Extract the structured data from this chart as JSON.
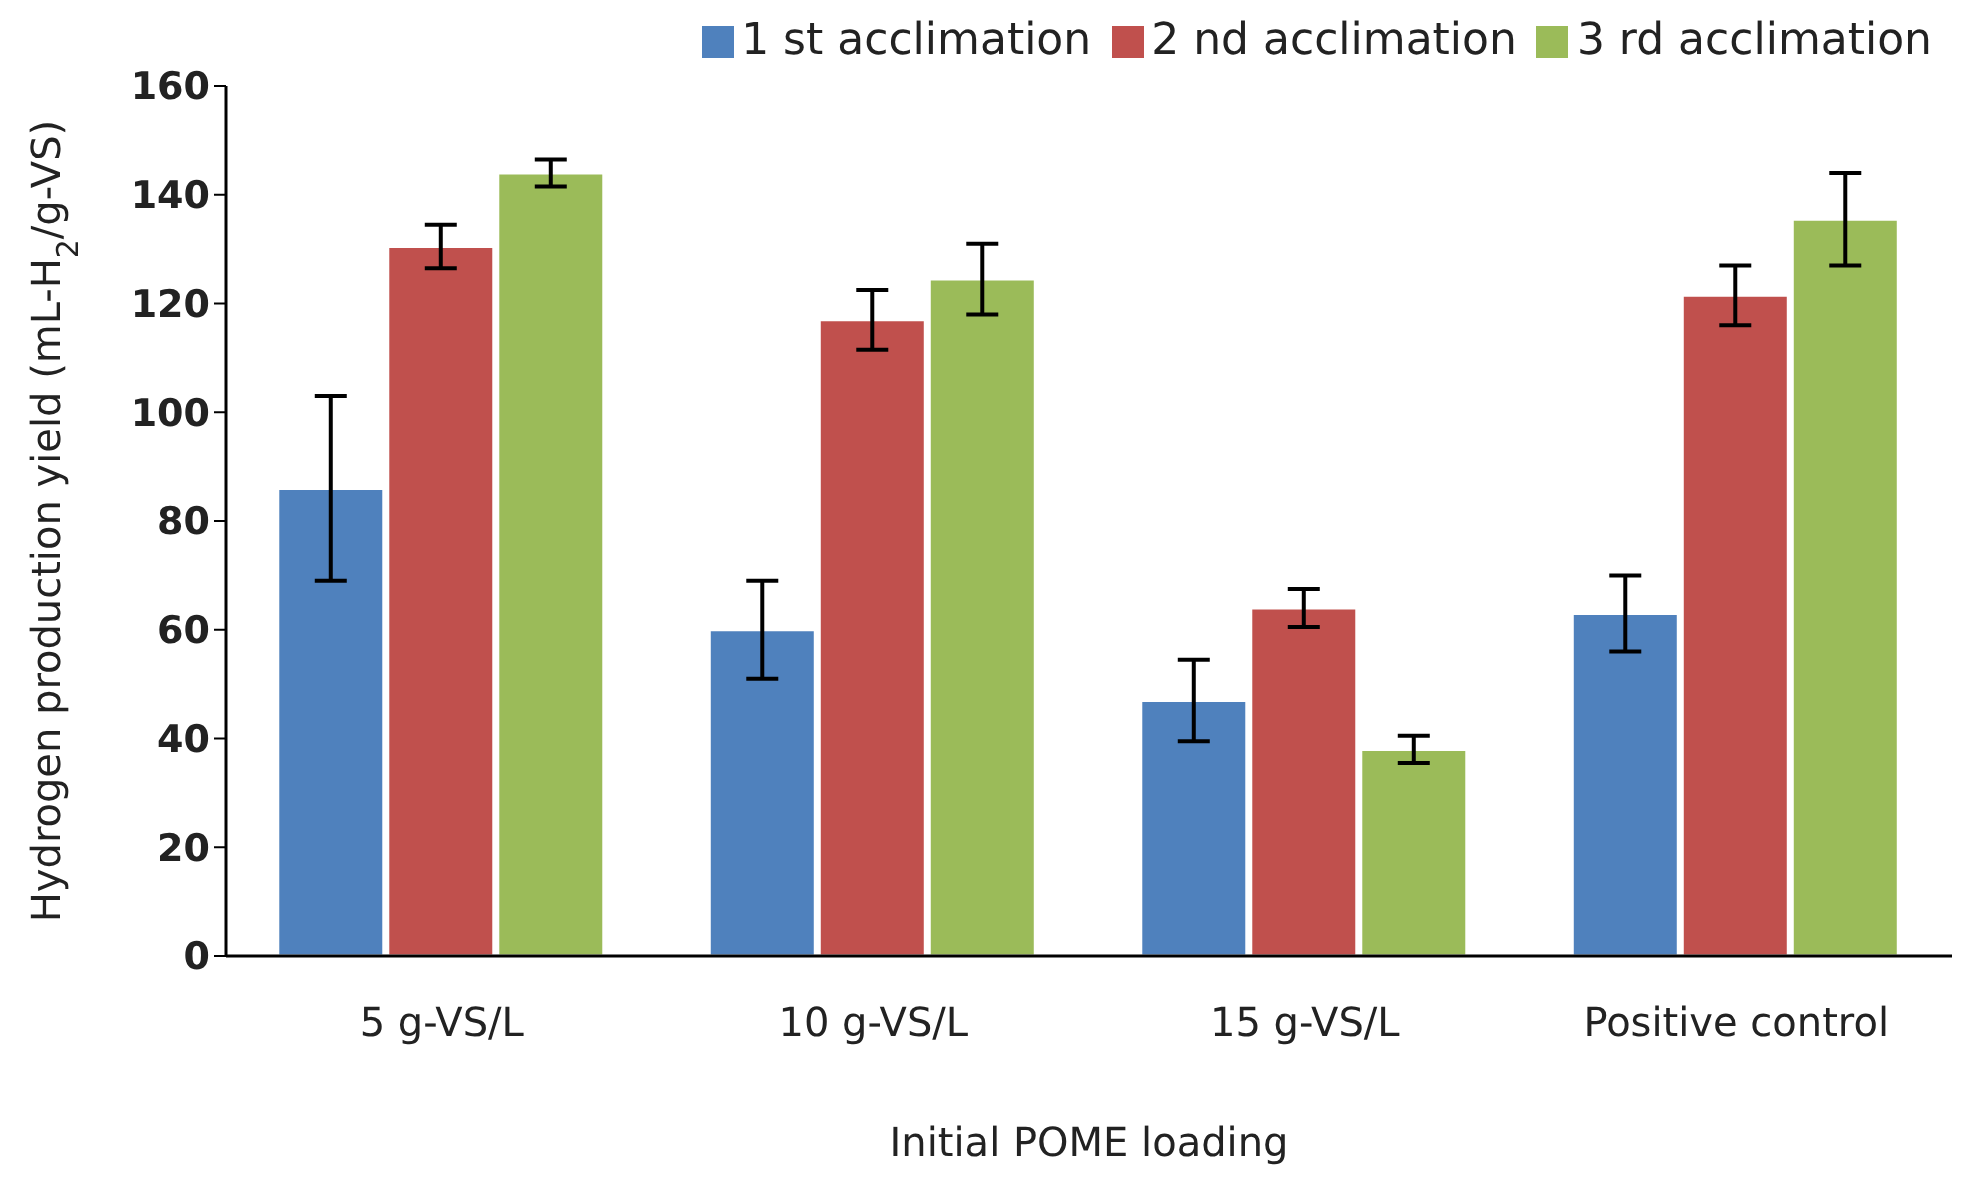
{
  "chart_data": {
    "type": "bar",
    "xlabel": "Initial POME loading",
    "ylabel": "Hydrogen  production yield (mL-H$_{2}$/g-VS)",
    "categories": [
      "5 g-VS/L",
      "10 g-VS/L",
      "15 g-VS/L",
      "Positive control"
    ],
    "series": [
      {
        "name": "1 st acclimation",
        "color": "#4f81bd",
        "values": [
          86,
          60,
          47,
          63
        ],
        "errors": [
          17,
          9,
          7.5,
          7
        ]
      },
      {
        "name": "2 nd acclimation",
        "color": "#c0504d",
        "values": [
          130.5,
          117,
          64,
          121.5
        ],
        "errors": [
          4,
          5.5,
          3.5,
          5.5
        ]
      },
      {
        "name": "3 rd acclimation",
        "color": "#9bbb59",
        "values": [
          144,
          124.5,
          38,
          135.5
        ],
        "errors": [
          2.5,
          6.5,
          2.5,
          8.5
        ]
      }
    ],
    "ylim": [
      0,
      160
    ],
    "yticks": [
      0,
      20,
      40,
      60,
      80,
      100,
      120,
      140,
      160
    ],
    "grid": false,
    "legend": "top right"
  }
}
